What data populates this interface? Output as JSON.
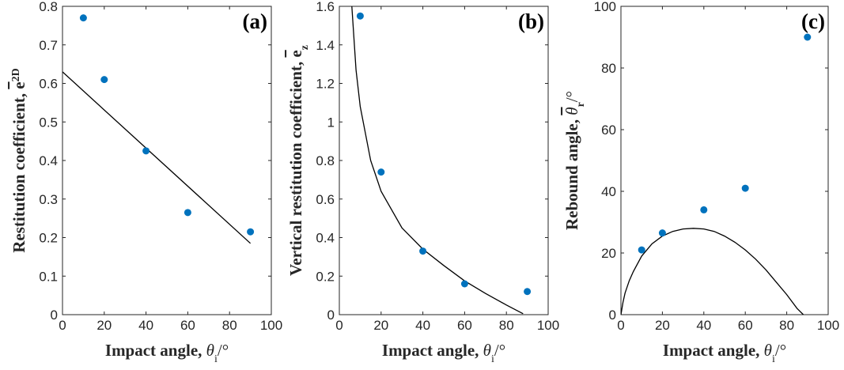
{
  "chart_data": [
    {
      "type": "scatter",
      "panel_label": "(a)",
      "xlabel": "Impact angle, θi/°",
      "ylabel": "Restitution coefficient, e2D",
      "xlim": [
        0,
        100
      ],
      "ylim": [
        0,
        0.8
      ],
      "xticks": [
        0,
        20,
        40,
        60,
        80,
        100
      ],
      "yticks": [
        0,
        0.1,
        0.2,
        0.3,
        0.4,
        0.5,
        0.6,
        0.7,
        0.8
      ],
      "ytick_labels": [
        "0",
        "0.1",
        "0.2",
        "0.3",
        "0.4",
        "0.5",
        "0.6",
        "0.7",
        "0.8"
      ],
      "points": {
        "x": [
          10,
          20,
          40,
          60,
          90
        ],
        "y": [
          0.77,
          0.61,
          0.425,
          0.265,
          0.215
        ]
      },
      "fit": {
        "x": [
          0,
          90
        ],
        "y": [
          0.63,
          0.185
        ]
      },
      "grid": false,
      "point_color": "#0072BD",
      "fit_color": "#000000"
    },
    {
      "type": "scatter",
      "panel_label": "(b)",
      "xlabel": "Impact angle, θi/°",
      "ylabel": "Vertical restitution coefficient, ez",
      "xlim": [
        0,
        100
      ],
      "ylim": [
        0,
        1.6
      ],
      "xticks": [
        0,
        20,
        40,
        60,
        80,
        100
      ],
      "yticks": [
        0,
        0.2,
        0.4,
        0.6,
        0.8,
        1,
        1.2,
        1.4,
        1.6
      ],
      "ytick_labels": [
        "0",
        "0.2",
        "0.4",
        "0.6",
        "0.8",
        "1",
        "1.2",
        "1.4",
        "1.6"
      ],
      "points": {
        "x": [
          10,
          20,
          40,
          60,
          90
        ],
        "y": [
          1.55,
          0.74,
          0.33,
          0.16,
          0.12
        ]
      },
      "fit": {
        "x": [
          6,
          8,
          10,
          15,
          20,
          30,
          40,
          50,
          60,
          70,
          80,
          88
        ],
        "y": [
          1.6,
          1.27,
          1.08,
          0.8,
          0.64,
          0.45,
          0.34,
          0.255,
          0.175,
          0.11,
          0.05,
          0.005
        ]
      },
      "grid": false,
      "point_color": "#0072BD",
      "fit_color": "#000000"
    },
    {
      "type": "scatter",
      "panel_label": "(c)",
      "xlabel": "Impact angle, θi/°",
      "ylabel": "Rebound angle, θr/°",
      "xlim": [
        0,
        100
      ],
      "ylim": [
        0,
        100
      ],
      "xticks": [
        0,
        20,
        40,
        60,
        80,
        100
      ],
      "yticks": [
        0,
        20,
        40,
        60,
        80,
        100
      ],
      "ytick_labels": [
        "0",
        "20",
        "40",
        "60",
        "80",
        "100"
      ],
      "points": {
        "x": [
          10,
          20,
          40,
          60,
          90
        ],
        "y": [
          21,
          26.5,
          34,
          41,
          90
        ]
      },
      "fit": {
        "x": [
          0,
          1,
          2,
          4,
          6,
          10,
          15,
          20,
          25,
          30,
          35,
          40,
          45,
          50,
          55,
          60,
          65,
          70,
          75,
          80,
          85,
          88
        ],
        "y": [
          0,
          4,
          7,
          11,
          14,
          19,
          23,
          25.5,
          27,
          27.8,
          28,
          27.8,
          27,
          25.5,
          23.5,
          21,
          18,
          14.5,
          10.5,
          6.5,
          2,
          0
        ]
      },
      "grid": false,
      "point_color": "#0072BD",
      "fit_color": "#000000"
    }
  ]
}
